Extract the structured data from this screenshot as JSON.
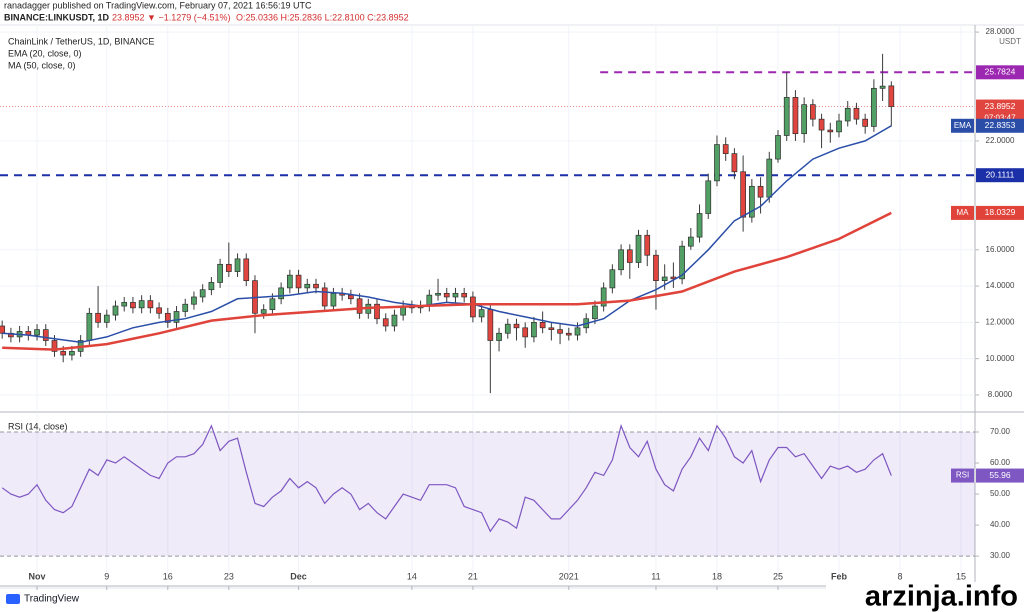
{
  "published": "ranadagger published on TradingView.com, February 07, 2021 16:56:19 UTC",
  "symbol": "BINANCE:LINKUSDT, 1D",
  "change": "23.8952 ▼ −1.1279 (−4.51%)",
  "ohlc_text": "O:25.0336 H:25.2836 L:22.8100 C:23.8952",
  "logo": "TradingView",
  "watermark": "arzinja.info",
  "chart_data": {
    "type": "candlestick",
    "title": "ChainLink / TetherUS, 1D, BINANCE",
    "unit": "USDT",
    "grid": true,
    "xlim": [
      -0.25,
      111.6
    ],
    "ylim": [
      7.17,
      28.39
    ],
    "xticks": [
      {
        "value": 4,
        "label": "Nov"
      },
      {
        "value": 12,
        "label": "9"
      },
      {
        "value": 19,
        "label": "16"
      },
      {
        "value": 26,
        "label": "23"
      },
      {
        "value": 34,
        "label": "Dec"
      },
      {
        "value": 47,
        "label": "14"
      },
      {
        "value": 54,
        "label": "21"
      },
      {
        "value": 65,
        "label": "2021"
      },
      {
        "value": 75,
        "label": "11"
      },
      {
        "value": 82,
        "label": "18"
      },
      {
        "value": 89,
        "label": "25"
      },
      {
        "value": 96,
        "label": "Feb"
      },
      {
        "value": 103,
        "label": "8"
      },
      {
        "value": 110,
        "label": "15"
      }
    ],
    "yticks": [
      {
        "value": 8,
        "label": "8.0000"
      },
      {
        "value": 10,
        "label": "10.0000"
      },
      {
        "value": 12,
        "label": "12.0000"
      },
      {
        "value": 14,
        "label": "14.0000"
      },
      {
        "value": 16,
        "label": "16.0000"
      },
      {
        "value": 22,
        "label": "22.0000"
      },
      {
        "value": 28,
        "label": "28.0000"
      }
    ],
    "candles": {
      "up_color": "#52a066",
      "down_color": "#e0463f",
      "countdown": "07:03:47",
      "x": [
        0,
        1,
        2,
        3,
        4,
        5,
        6,
        7,
        8,
        9,
        10,
        11,
        12,
        13,
        14,
        15,
        16,
        17,
        18,
        19,
        20,
        21,
        22,
        23,
        24,
        25,
        26,
        27,
        28,
        29,
        30,
        31,
        32,
        33,
        34,
        35,
        36,
        37,
        38,
        39,
        40,
        41,
        42,
        43,
        44,
        45,
        46,
        47,
        48,
        49,
        50,
        51,
        52,
        53,
        54,
        55,
        56,
        57,
        58,
        59,
        60,
        61,
        62,
        63,
        64,
        65,
        66,
        67,
        68,
        69,
        70,
        71,
        72,
        73,
        74,
        75,
        76,
        77,
        78,
        79,
        80,
        81,
        82,
        83,
        84,
        85,
        86,
        87,
        88,
        89,
        90,
        91,
        92,
        93,
        94,
        95,
        96,
        97,
        98,
        99,
        100,
        101,
        102
      ],
      "open": [
        11.8,
        11.4,
        11.2,
        11.5,
        11.3,
        11.6,
        11.0,
        10.4,
        10.2,
        10.4,
        11.0,
        12.5,
        12.0,
        12.4,
        12.9,
        13.1,
        12.8,
        13.2,
        12.8,
        12.5,
        12.0,
        12.6,
        13.0,
        13.4,
        13.8,
        14.2,
        15.2,
        14.8,
        15.5,
        14.3,
        12.5,
        12.7,
        13.3,
        13.9,
        14.6,
        13.9,
        14.1,
        13.9,
        12.9,
        13.6,
        13.5,
        13.3,
        12.5,
        13.0,
        12.2,
        11.8,
        12.4,
        12.9,
        12.8,
        12.9,
        13.5,
        13.6,
        13.4,
        13.6,
        13.4,
        12.3,
        12.7,
        11.0,
        11.4,
        11.9,
        11.7,
        11.2,
        12.0,
        11.7,
        11.6,
        11.4,
        11.3,
        11.7,
        12.2,
        12.9,
        13.9,
        14.9,
        16.0,
        15.3,
        16.8,
        15.7,
        14.3,
        14.5,
        14.4,
        16.2,
        16.7,
        18.0,
        19.8,
        21.8,
        21.3,
        20.3,
        17.8,
        19.5,
        18.9,
        21.0,
        22.3,
        24.4,
        22.4,
        24.0,
        23.2,
        22.6,
        22.5,
        23.1,
        23.8,
        23.2,
        22.8,
        24.9,
        25.0336
      ],
      "high": [
        12.1,
        11.7,
        11.8,
        11.8,
        11.9,
        11.9,
        11.3,
        10.7,
        10.7,
        11.3,
        12.8,
        14.0,
        12.7,
        13.2,
        13.4,
        13.4,
        13.5,
        13.5,
        13.1,
        12.8,
        12.9,
        13.3,
        13.7,
        14.1,
        14.5,
        15.5,
        16.4,
        15.8,
        15.8,
        14.6,
        13.0,
        13.6,
        14.2,
        14.9,
        14.9,
        14.4,
        14.4,
        14.2,
        13.9,
        13.9,
        13.8,
        13.6,
        13.3,
        13.3,
        12.5,
        12.7,
        13.2,
        13.2,
        13.2,
        13.8,
        14.4,
        13.9,
        13.9,
        13.9,
        13.7,
        13.0,
        13.0,
        11.7,
        12.2,
        12.2,
        12.0,
        12.3,
        12.6,
        12.0,
        11.9,
        11.7,
        12.0,
        12.5,
        13.2,
        14.2,
        15.2,
        16.3,
        16.3,
        17.1,
        17.1,
        16.0,
        15.2,
        15.3,
        16.5,
        17.2,
        18.5,
        20.2,
        22.3,
        22.2,
        21.6,
        21.2,
        19.9,
        20.0,
        21.4,
        22.6,
        25.8,
        24.8,
        24.4,
        24.3,
        23.5,
        23.0,
        23.5,
        24.2,
        24.1,
        23.5,
        25.4,
        26.8,
        25.2836
      ],
      "low": [
        11.1,
        10.9,
        10.9,
        11.0,
        11.0,
        10.7,
        10.1,
        9.8,
        9.9,
        10.1,
        10.7,
        11.7,
        11.7,
        12.1,
        12.6,
        12.5,
        12.5,
        12.5,
        12.2,
        11.7,
        11.7,
        12.3,
        12.7,
        13.1,
        13.5,
        13.9,
        14.5,
        14.5,
        14.0,
        11.4,
        12.2,
        12.4,
        13.0,
        13.6,
        13.6,
        13.6,
        13.6,
        12.6,
        12.6,
        13.2,
        13.0,
        12.2,
        12.2,
        11.9,
        11.5,
        11.5,
        12.1,
        12.5,
        12.5,
        12.6,
        13.2,
        13.1,
        13.1,
        13.1,
        12.0,
        12.0,
        8.1,
        10.4,
        11.1,
        11.0,
        10.6,
        10.9,
        11.4,
        11.0,
        10.8,
        11.0,
        11.0,
        11.4,
        11.9,
        12.6,
        13.6,
        14.6,
        14.4,
        15.0,
        15.1,
        12.7,
        13.8,
        13.9,
        14.1,
        16.0,
        16.4,
        17.7,
        19.5,
        20.9,
        19.9,
        17.0,
        17.5,
        18.0,
        18.6,
        20.8,
        22.0,
        22.0,
        21.9,
        22.8,
        21.6,
        21.9,
        22.2,
        22.8,
        22.9,
        22.4,
        22.5,
        24.2,
        22.81
      ],
      "close": [
        11.4,
        11.2,
        11.5,
        11.3,
        11.6,
        11.0,
        10.4,
        10.2,
        10.4,
        11.0,
        12.5,
        12.0,
        12.4,
        12.9,
        13.1,
        12.8,
        13.2,
        12.8,
        12.5,
        12.0,
        12.6,
        13.0,
        13.4,
        13.8,
        14.2,
        15.2,
        14.8,
        15.5,
        14.3,
        12.5,
        12.7,
        13.3,
        13.9,
        14.6,
        13.9,
        14.1,
        13.9,
        12.9,
        13.6,
        13.5,
        13.3,
        12.5,
        13.0,
        12.2,
        11.8,
        12.4,
        12.9,
        12.8,
        12.9,
        13.5,
        13.6,
        13.4,
        13.6,
        13.4,
        12.3,
        12.7,
        11.0,
        11.4,
        11.9,
        11.7,
        11.2,
        12.0,
        11.7,
        11.6,
        11.4,
        11.3,
        11.7,
        12.2,
        12.9,
        13.9,
        14.9,
        16.0,
        15.3,
        16.8,
        15.7,
        14.3,
        14.5,
        14.4,
        16.2,
        16.7,
        18.0,
        19.8,
        21.8,
        21.3,
        20.3,
        17.8,
        19.5,
        18.9,
        21.0,
        22.3,
        24.4,
        22.4,
        24.0,
        23.2,
        22.6,
        22.5,
        23.1,
        23.8,
        23.2,
        22.8,
        24.9,
        25.02,
        23.8952
      ]
    },
    "series": [
      {
        "name": "EMA (20, close, 0)",
        "badge": "EMA",
        "color": "#2a4ea8",
        "x": [
          0,
          3,
          6,
          9,
          12,
          15,
          18,
          21,
          24,
          27,
          30,
          33,
          36,
          39,
          42,
          45,
          48,
          51,
          54,
          57,
          60,
          63,
          66,
          69,
          72,
          75,
          78,
          81,
          84,
          87,
          90,
          93,
          96,
          99,
          102
        ],
        "values": [
          11.4,
          11.3,
          11.1,
          10.9,
          11.2,
          11.7,
          12.0,
          12.2,
          12.6,
          13.3,
          13.4,
          13.5,
          13.7,
          13.6,
          13.4,
          13.1,
          12.9,
          13.1,
          13.0,
          12.6,
          12.3,
          12.0,
          11.8,
          12.2,
          13.2,
          13.8,
          14.6,
          16.0,
          17.6,
          18.4,
          19.8,
          21.0,
          21.6,
          22.0,
          22.8353
        ]
      },
      {
        "name": "MA (50, close, 0)",
        "badge": "MA",
        "color": "#e0433a",
        "x": [
          0,
          6,
          12,
          18,
          24,
          30,
          36,
          42,
          48,
          54,
          60,
          66,
          72,
          78,
          84,
          90,
          96,
          102
        ],
        "values": [
          10.6,
          10.5,
          10.8,
          11.4,
          12.1,
          12.4,
          12.6,
          12.8,
          12.9,
          13.0,
          13.0,
          13.0,
          13.2,
          13.7,
          14.8,
          15.6,
          16.6,
          18.0329
        ]
      }
    ],
    "levels": [
      {
        "value": 25.7824,
        "color": "#9c27b0",
        "x_start": 68.6
      },
      {
        "value": 20.1111,
        "color": "#1a2fa8",
        "x_start": -0.25
      }
    ],
    "rsi": {
      "name": "RSI (14, close)",
      "badge": "RSI",
      "color": "#7e57c2",
      "ylim": [
        22.3,
        75.8
      ],
      "band": [
        30,
        70
      ],
      "yticks": [
        {
          "value": 30,
          "label": "30.00"
        },
        {
          "value": 40,
          "label": "40.00"
        },
        {
          "value": 50,
          "label": "50.00"
        },
        {
          "value": 60,
          "label": "60.00"
        },
        {
          "value": 70,
          "label": "70.00"
        }
      ],
      "x": [
        0,
        1,
        2,
        3,
        4,
        5,
        6,
        7,
        8,
        9,
        10,
        11,
        12,
        13,
        14,
        15,
        16,
        17,
        18,
        19,
        20,
        21,
        22,
        23,
        24,
        25,
        26,
        27,
        28,
        29,
        30,
        31,
        32,
        33,
        34,
        35,
        36,
        37,
        38,
        39,
        40,
        41,
        42,
        43,
        44,
        45,
        46,
        47,
        48,
        49,
        50,
        51,
        52,
        53,
        54,
        55,
        56,
        57,
        58,
        59,
        60,
        61,
        62,
        63,
        64,
        65,
        66,
        67,
        68,
        69,
        70,
        71,
        72,
        73,
        74,
        75,
        76,
        77,
        78,
        79,
        80,
        81,
        82,
        83,
        84,
        85,
        86,
        87,
        88,
        89,
        90,
        91,
        92,
        93,
        94,
        95,
        96,
        97,
        98,
        99,
        100,
        101,
        102
      ],
      "values": [
        52,
        50,
        49,
        50,
        53,
        48,
        45,
        44,
        46,
        52,
        58,
        56,
        61,
        60,
        62,
        60,
        58,
        56,
        55,
        60,
        62,
        62,
        63,
        66,
        72,
        64,
        67,
        68,
        57,
        47,
        46,
        49,
        51,
        55,
        52,
        54,
        52,
        47,
        50,
        52,
        50,
        45,
        47,
        44,
        42,
        46,
        50,
        49,
        48,
        53,
        53,
        53,
        52,
        46,
        45,
        44,
        38,
        42,
        41,
        39,
        49,
        48,
        45,
        42,
        42,
        45,
        48,
        52,
        57,
        56,
        61,
        72,
        65,
        62,
        67,
        58,
        53,
        51,
        58,
        62,
        68,
        64,
        72,
        68,
        62,
        60,
        64,
        54,
        61,
        65,
        65,
        62,
        63,
        59,
        55,
        59,
        58,
        59,
        57,
        58,
        61,
        63,
        55.96
      ]
    }
  }
}
